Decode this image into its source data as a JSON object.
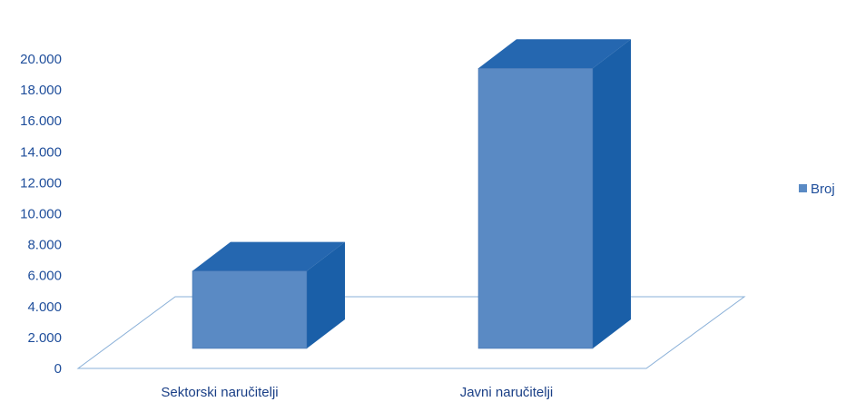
{
  "chart_data": {
    "type": "bar",
    "categories": [
      "Sektorski naručitelji",
      "Javni naručitelji"
    ],
    "series": [
      {
        "name": "Broj",
        "values": [
          6300,
          19400
        ]
      }
    ],
    "yticks": [
      "0",
      "2.000",
      "4.000",
      "6.000",
      "8.000",
      "10.000",
      "12.000",
      "14.000",
      "16.000",
      "18.000",
      "20.000"
    ],
    "ylim": [
      0,
      20000
    ],
    "legend_position": "right",
    "three_d": true,
    "colors": {
      "front": "#5a8ac4",
      "side": "#1a5fa8",
      "top": "#2567b0",
      "floor": "#8ab0d8",
      "text": "#1f4e9b"
    }
  }
}
